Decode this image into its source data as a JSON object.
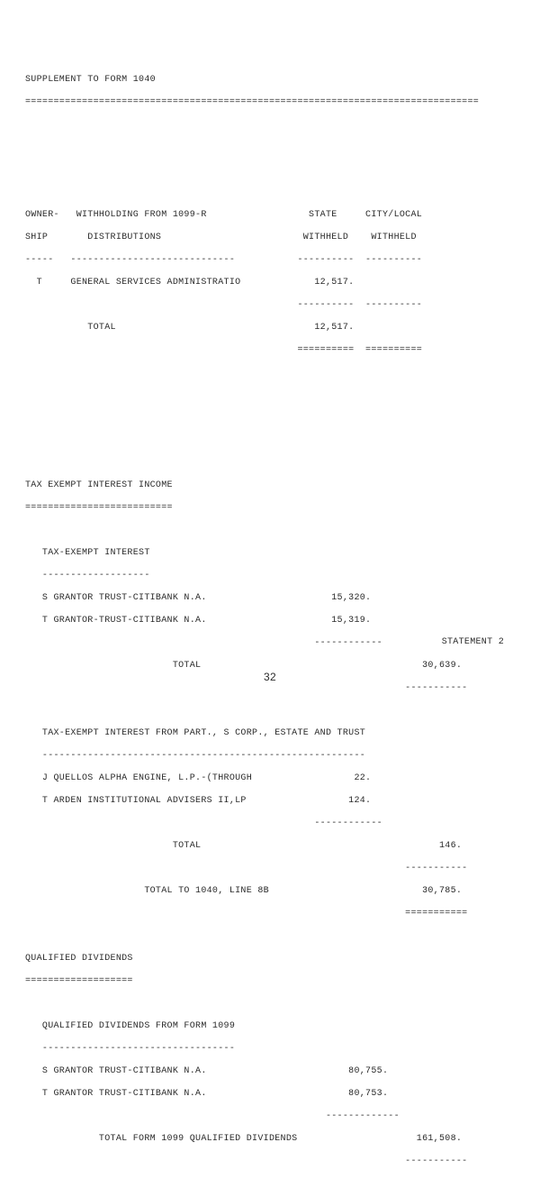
{
  "supplement_title": "SUPPLEMENT TO FORM 1040",
  "dbl_rule": "================================================================================",
  "section1": {
    "header_l1": "OWNER-   WITHHOLDING FROM 1099-R                  STATE     CITY/LOCAL",
    "header_l2": "SHIP       DISTRIBUTIONS                         WITHHELD    WITHHELD",
    "header_ul": "-----   -----------------------------           ----------  ----------",
    "row_t": "  T     GENERAL SERVICES ADMINISTRATIO             12,517.",
    "row_ul": "                                                ----------  ----------",
    "total": "           TOTAL                                   12,517.",
    "total_ul": "                                                ==========  =========="
  },
  "section2": {
    "title": "TAX EXEMPT INTEREST INCOME",
    "title_ul": "==========================",
    "sub1": "   TAX-EXEMPT INTEREST",
    "sub1_ul": "   -------------------",
    "row_s": "   S GRANTOR TRUST-CITIBANK N.A.                      15,320.",
    "row_t": "   T GRANTOR-TRUST-CITIBANK N.A.                      15,319.",
    "row_ul": "                                                   ------------",
    "total1": "                          TOTAL                                       30,639.",
    "total1_ul": "                                                                   -----------",
    "sub2": "   TAX-EXEMPT INTEREST FROM PART., S CORP., ESTATE AND TRUST",
    "sub2_ul": "   ---------------------------------------------------------",
    "row_j": "   J QUELLOS ALPHA ENGINE, L.P.-(THROUGH                  22.",
    "row_ti": "   T ARDEN INSTITUTIONAL ADVISERS II,LP                  124.",
    "row2_ul": "                                                   ------------",
    "total2": "                          TOTAL                                          146.",
    "total2_ul": "                                                                   -----------",
    "total3": "                     TOTAL TO 1040, LINE 8B                           30,785.",
    "total3_ul": "                                                                   ==========="
  },
  "section3": {
    "title": "QUALIFIED DIVIDENDS",
    "title_ul": "===================",
    "sub1": "   QUALIFIED DIVIDENDS FROM FORM 1099",
    "sub1_ul": "   ----------------------------------",
    "row_s": "   S GRANTOR TRUST-CITIBANK N.A.                         80,755.",
    "row_t": "   T GRANTOR TRUST-CITIBANK N.A.                         80,753.",
    "row_ul": "                                                     -------------",
    "total": "             TOTAL FORM 1099 QUALIFIED DIVIDENDS                     161,508.",
    "total_ul": "                                                                   -----------"
  },
  "footer": {
    "statement": "STATEMENT   2",
    "page_number": "32"
  }
}
